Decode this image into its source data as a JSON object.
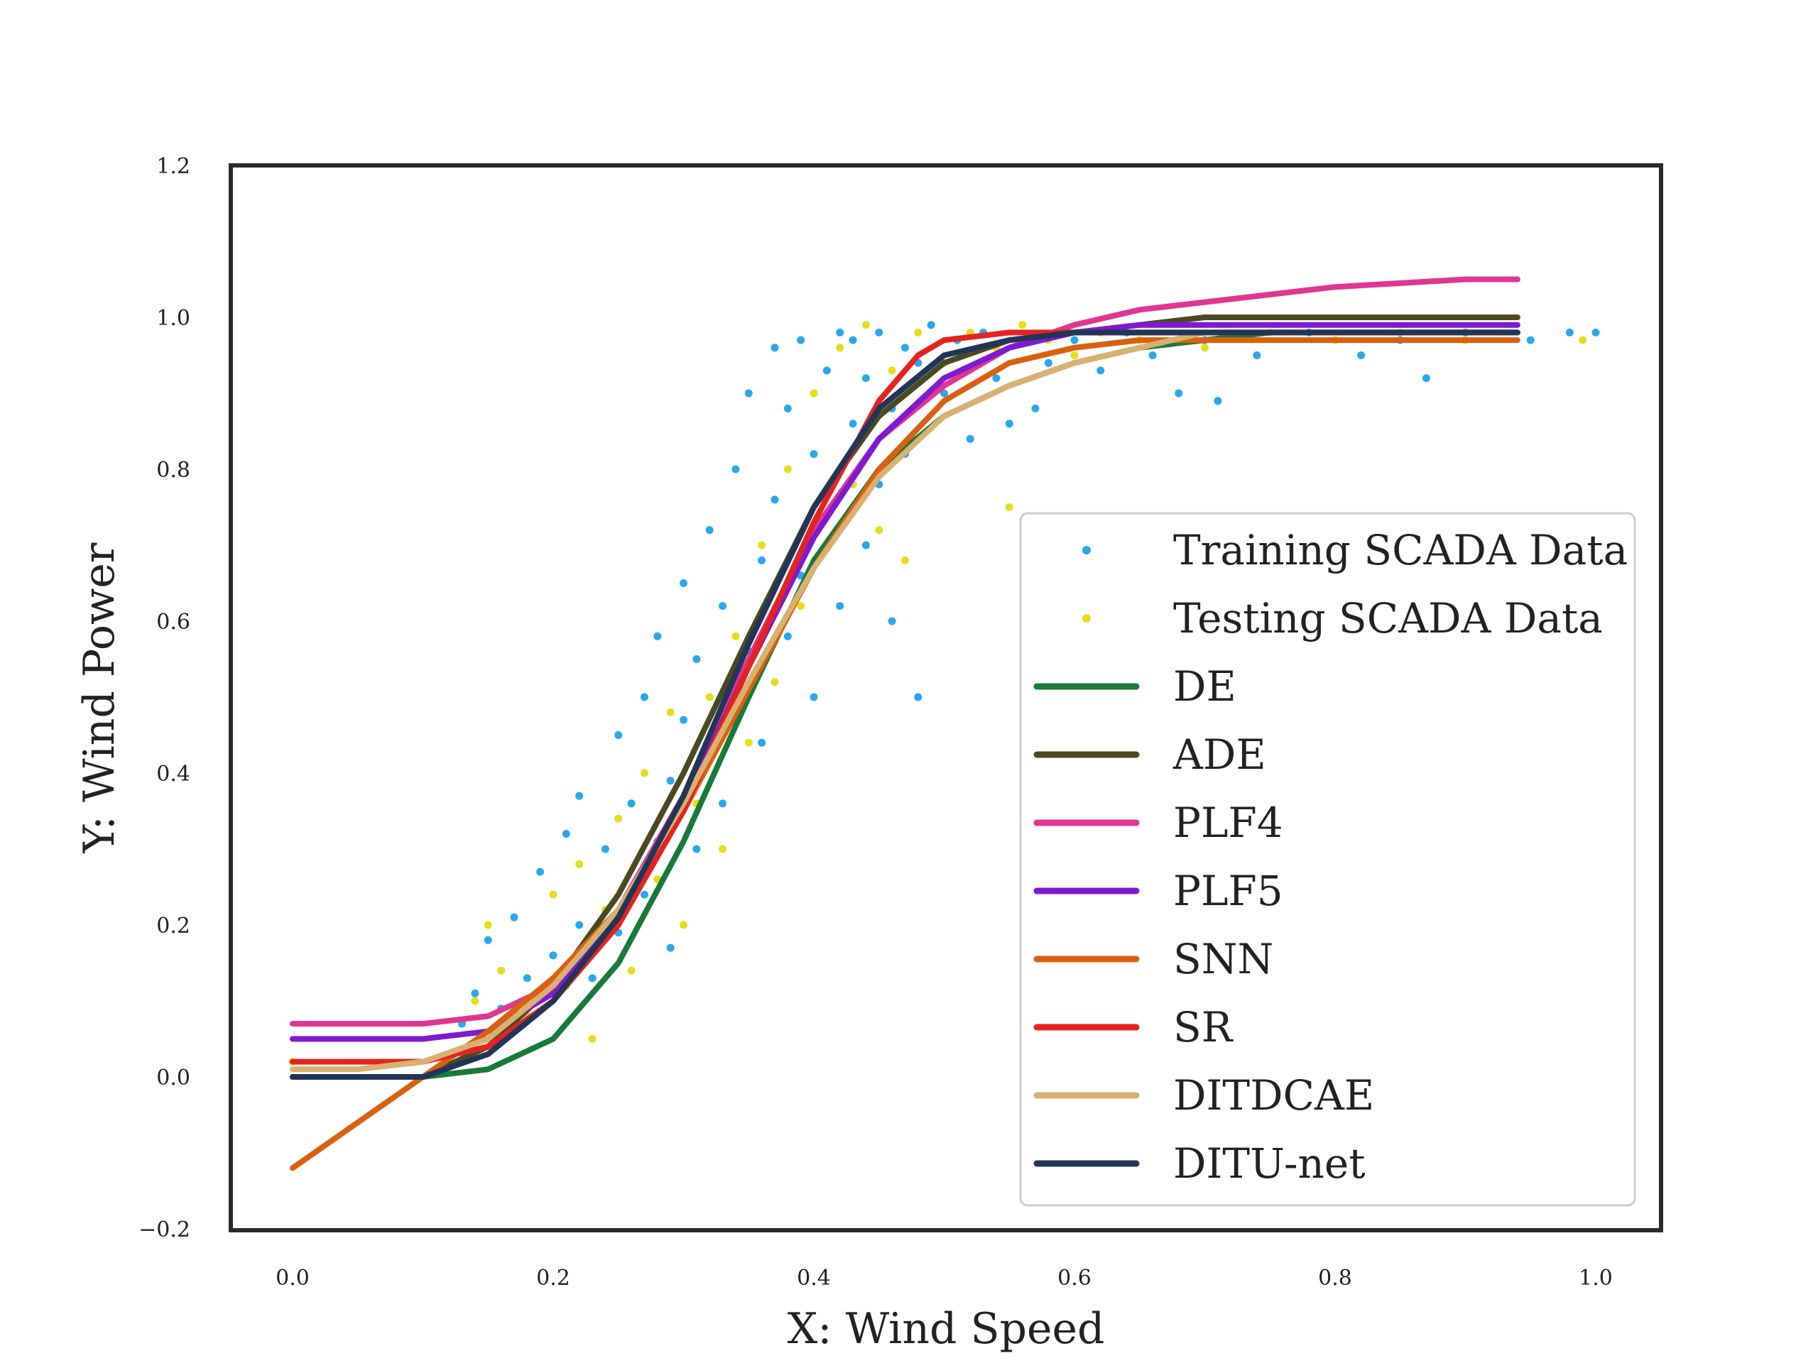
{
  "chart_data": {
    "type": "scatter",
    "title": "",
    "xlabel": "X: Wind Speed",
    "ylabel": "Y: Wind Power",
    "xlim": [
      -0.05,
      1.05
    ],
    "ylim": [
      -0.2,
      1.2
    ],
    "xticks": [
      "0.0",
      "0.2",
      "0.4",
      "0.6",
      "0.8",
      "1.0"
    ],
    "yticks": [
      "−0.2",
      "0.0",
      "0.2",
      "0.4",
      "0.6",
      "0.8",
      "1.0",
      "1.2"
    ],
    "grid": false,
    "legend_position": "lower-right",
    "scatter_series": [
      {
        "name": "Training SCADA Data",
        "color": "#29a6f0",
        "points": [
          [
            0.13,
            0.07
          ],
          [
            0.14,
            0.11
          ],
          [
            0.15,
            0.18
          ],
          [
            0.16,
            0.09
          ],
          [
            0.17,
            0.21
          ],
          [
            0.18,
            0.13
          ],
          [
            0.19,
            0.27
          ],
          [
            0.2,
            0.16
          ],
          [
            0.21,
            0.32
          ],
          [
            0.22,
            0.2
          ],
          [
            0.22,
            0.37
          ],
          [
            0.23,
            0.13
          ],
          [
            0.24,
            0.3
          ],
          [
            0.25,
            0.45
          ],
          [
            0.25,
            0.19
          ],
          [
            0.26,
            0.36
          ],
          [
            0.27,
            0.24
          ],
          [
            0.27,
            0.5
          ],
          [
            0.28,
            0.31
          ],
          [
            0.28,
            0.58
          ],
          [
            0.29,
            0.39
          ],
          [
            0.29,
            0.17
          ],
          [
            0.3,
            0.47
          ],
          [
            0.3,
            0.65
          ],
          [
            0.31,
            0.3
          ],
          [
            0.31,
            0.55
          ],
          [
            0.32,
            0.42
          ],
          [
            0.32,
            0.72
          ],
          [
            0.33,
            0.36
          ],
          [
            0.33,
            0.62
          ],
          [
            0.34,
            0.48
          ],
          [
            0.34,
            0.8
          ],
          [
            0.35,
            0.56
          ],
          [
            0.35,
            0.9
          ],
          [
            0.36,
            0.68
          ],
          [
            0.36,
            0.44
          ],
          [
            0.37,
            0.96
          ],
          [
            0.37,
            0.76
          ],
          [
            0.38,
            0.58
          ],
          [
            0.38,
            0.88
          ],
          [
            0.39,
            0.97
          ],
          [
            0.39,
            0.66
          ],
          [
            0.4,
            0.82
          ],
          [
            0.4,
            0.5
          ],
          [
            0.41,
            0.93
          ],
          [
            0.41,
            0.74
          ],
          [
            0.42,
            0.98
          ],
          [
            0.42,
            0.62
          ],
          [
            0.43,
            0.86
          ],
          [
            0.43,
            0.97
          ],
          [
            0.44,
            0.7
          ],
          [
            0.44,
            0.92
          ],
          [
            0.45,
            0.78
          ],
          [
            0.45,
            0.98
          ],
          [
            0.46,
            0.88
          ],
          [
            0.46,
            0.6
          ],
          [
            0.47,
            0.96
          ],
          [
            0.47,
            0.82
          ],
          [
            0.48,
            0.94
          ],
          [
            0.48,
            0.5
          ],
          [
            0.49,
            0.99
          ],
          [
            0.5,
            0.9
          ],
          [
            0.51,
            0.97
          ],
          [
            0.52,
            0.84
          ],
          [
            0.53,
            0.98
          ],
          [
            0.54,
            0.92
          ],
          [
            0.55,
            0.86
          ],
          [
            0.56,
            0.97
          ],
          [
            0.57,
            0.88
          ],
          [
            0.58,
            0.94
          ],
          [
            0.6,
            0.97
          ],
          [
            0.62,
            0.93
          ],
          [
            0.64,
            0.98
          ],
          [
            0.66,
            0.95
          ],
          [
            0.68,
            0.9
          ],
          [
            0.7,
            0.97
          ],
          [
            0.71,
            0.89
          ],
          [
            0.74,
            0.95
          ],
          [
            0.78,
            0.98
          ],
          [
            0.82,
            0.95
          ],
          [
            0.85,
            0.97
          ],
          [
            0.87,
            0.92
          ],
          [
            0.9,
            0.98
          ],
          [
            0.95,
            0.97
          ],
          [
            0.98,
            0.98
          ],
          [
            1.0,
            0.98
          ]
        ]
      },
      {
        "name": "Testing SCADA Data",
        "color": "#e6dc1a",
        "points": [
          [
            0.0,
            0.02
          ],
          [
            0.14,
            0.1
          ],
          [
            0.15,
            0.2
          ],
          [
            0.16,
            0.14
          ],
          [
            0.18,
            0.08
          ],
          [
            0.2,
            0.24
          ],
          [
            0.21,
            0.12
          ],
          [
            0.22,
            0.28
          ],
          [
            0.23,
            0.05
          ],
          [
            0.24,
            0.22
          ],
          [
            0.25,
            0.34
          ],
          [
            0.26,
            0.14
          ],
          [
            0.27,
            0.4
          ],
          [
            0.28,
            0.26
          ],
          [
            0.29,
            0.48
          ],
          [
            0.3,
            0.2
          ],
          [
            0.31,
            0.36
          ],
          [
            0.32,
            0.5
          ],
          [
            0.33,
            0.3
          ],
          [
            0.34,
            0.58
          ],
          [
            0.35,
            0.44
          ],
          [
            0.36,
            0.7
          ],
          [
            0.37,
            0.52
          ],
          [
            0.38,
            0.8
          ],
          [
            0.39,
            0.62
          ],
          [
            0.4,
            0.9
          ],
          [
            0.41,
            0.7
          ],
          [
            0.42,
            0.96
          ],
          [
            0.43,
            0.78
          ],
          [
            0.44,
            0.99
          ],
          [
            0.45,
            0.72
          ],
          [
            0.46,
            0.93
          ],
          [
            0.47,
            0.68
          ],
          [
            0.48,
            0.98
          ],
          [
            0.5,
            0.94
          ],
          [
            0.52,
            0.98
          ],
          [
            0.54,
            0.96
          ],
          [
            0.55,
            0.75
          ],
          [
            0.56,
            0.99
          ],
          [
            0.58,
            0.97
          ],
          [
            0.6,
            0.95
          ],
          [
            0.62,
            0.98
          ],
          [
            0.65,
            0.97
          ],
          [
            0.7,
            0.96
          ],
          [
            0.75,
            0.98
          ],
          [
            0.8,
            0.97
          ],
          [
            0.85,
            0.98
          ],
          [
            0.9,
            0.97
          ],
          [
            0.99,
            0.97
          ]
        ]
      }
    ],
    "line_series": [
      {
        "name": "DE",
        "color": "#177a3a",
        "x": [
          0.0,
          0.05,
          0.1,
          0.15,
          0.2,
          0.25,
          0.3,
          0.35,
          0.4,
          0.45,
          0.5,
          0.55,
          0.6,
          0.65,
          0.7,
          0.75,
          0.8,
          0.85,
          0.9,
          0.94
        ],
        "y": [
          0.0,
          0.0,
          0.0,
          0.01,
          0.05,
          0.15,
          0.31,
          0.5,
          0.68,
          0.8,
          0.87,
          0.91,
          0.94,
          0.96,
          0.97,
          0.98,
          0.98,
          0.98,
          0.98,
          0.98
        ]
      },
      {
        "name": "ADE",
        "color": "#4a4a22",
        "x": [
          0.0,
          0.05,
          0.1,
          0.15,
          0.2,
          0.25,
          0.3,
          0.35,
          0.4,
          0.45,
          0.5,
          0.55,
          0.6,
          0.65,
          0.7,
          0.75,
          0.8,
          0.85,
          0.9,
          0.94
        ],
        "y": [
          0.0,
          0.0,
          0.0,
          0.04,
          0.12,
          0.24,
          0.4,
          0.58,
          0.75,
          0.87,
          0.94,
          0.97,
          0.98,
          0.99,
          1.0,
          1.0,
          1.0,
          1.0,
          1.0,
          1.0
        ]
      },
      {
        "name": "PLF4",
        "color": "#e03591",
        "x": [
          0.0,
          0.05,
          0.1,
          0.15,
          0.2,
          0.25,
          0.3,
          0.35,
          0.4,
          0.45,
          0.5,
          0.55,
          0.6,
          0.65,
          0.7,
          0.75,
          0.8,
          0.85,
          0.9,
          0.94
        ],
        "y": [
          0.07,
          0.07,
          0.07,
          0.08,
          0.12,
          0.22,
          0.37,
          0.55,
          0.72,
          0.84,
          0.91,
          0.96,
          0.99,
          1.01,
          1.02,
          1.03,
          1.04,
          1.045,
          1.05,
          1.05
        ]
      },
      {
        "name": "PLF5",
        "color": "#7e1ad1",
        "x": [
          0.0,
          0.05,
          0.1,
          0.15,
          0.2,
          0.25,
          0.3,
          0.35,
          0.4,
          0.45,
          0.5,
          0.55,
          0.6,
          0.65,
          0.7,
          0.75,
          0.8,
          0.85,
          0.9,
          0.94
        ],
        "y": [
          0.05,
          0.05,
          0.05,
          0.06,
          0.11,
          0.21,
          0.36,
          0.54,
          0.71,
          0.84,
          0.92,
          0.96,
          0.98,
          0.99,
          0.99,
          0.99,
          0.99,
          0.99,
          0.99,
          0.99
        ]
      },
      {
        "name": "SNN",
        "color": "#d9600f",
        "x": [
          0.0,
          0.05,
          0.1,
          0.15,
          0.2,
          0.25,
          0.3,
          0.35,
          0.4,
          0.45,
          0.5,
          0.55,
          0.6,
          0.65,
          0.7,
          0.75,
          0.8,
          0.85,
          0.9,
          0.94
        ],
        "y": [
          -0.12,
          -0.06,
          0.0,
          0.06,
          0.13,
          0.22,
          0.35,
          0.51,
          0.67,
          0.8,
          0.89,
          0.94,
          0.96,
          0.97,
          0.97,
          0.97,
          0.97,
          0.97,
          0.97,
          0.97
        ]
      },
      {
        "name": "SR",
        "color": "#e4231e",
        "x": [
          0.0,
          0.05,
          0.1,
          0.15,
          0.2,
          0.25,
          0.3,
          0.35,
          0.4,
          0.45,
          0.48,
          0.5,
          0.55,
          0.6,
          0.65,
          0.7,
          0.75,
          0.8,
          0.85,
          0.9,
          0.94
        ],
        "y": [
          0.02,
          0.02,
          0.02,
          0.04,
          0.1,
          0.2,
          0.35,
          0.54,
          0.73,
          0.89,
          0.95,
          0.97,
          0.98,
          0.98,
          0.98,
          0.98,
          0.98,
          0.98,
          0.98,
          0.98,
          0.98
        ]
      },
      {
        "name": "DITDCAE",
        "color": "#d8b070",
        "x": [
          0.0,
          0.05,
          0.1,
          0.15,
          0.2,
          0.25,
          0.3,
          0.35,
          0.4,
          0.45,
          0.5,
          0.55,
          0.6,
          0.65,
          0.7,
          0.75,
          0.8,
          0.85,
          0.9,
          0.94
        ],
        "y": [
          0.01,
          0.01,
          0.02,
          0.05,
          0.12,
          0.22,
          0.36,
          0.52,
          0.67,
          0.79,
          0.87,
          0.91,
          0.94,
          0.96,
          0.98,
          0.98,
          0.98,
          0.98,
          0.98,
          0.98
        ]
      },
      {
        "name": "DITU-net",
        "color": "#223558",
        "x": [
          0.0,
          0.05,
          0.1,
          0.15,
          0.2,
          0.25,
          0.3,
          0.35,
          0.4,
          0.45,
          0.5,
          0.55,
          0.6,
          0.65,
          0.7,
          0.75,
          0.8,
          0.85,
          0.9,
          0.94
        ],
        "y": [
          0.0,
          0.0,
          0.0,
          0.03,
          0.1,
          0.21,
          0.37,
          0.57,
          0.75,
          0.88,
          0.95,
          0.97,
          0.98,
          0.98,
          0.98,
          0.98,
          0.98,
          0.98,
          0.98,
          0.98
        ]
      }
    ],
    "legend": [
      "Training SCADA Data",
      "Testing SCADA Data",
      "DE",
      "ADE",
      "PLF4",
      "PLF5",
      "SNN",
      "SR",
      "DITDCAE",
      "DITU-net"
    ]
  }
}
